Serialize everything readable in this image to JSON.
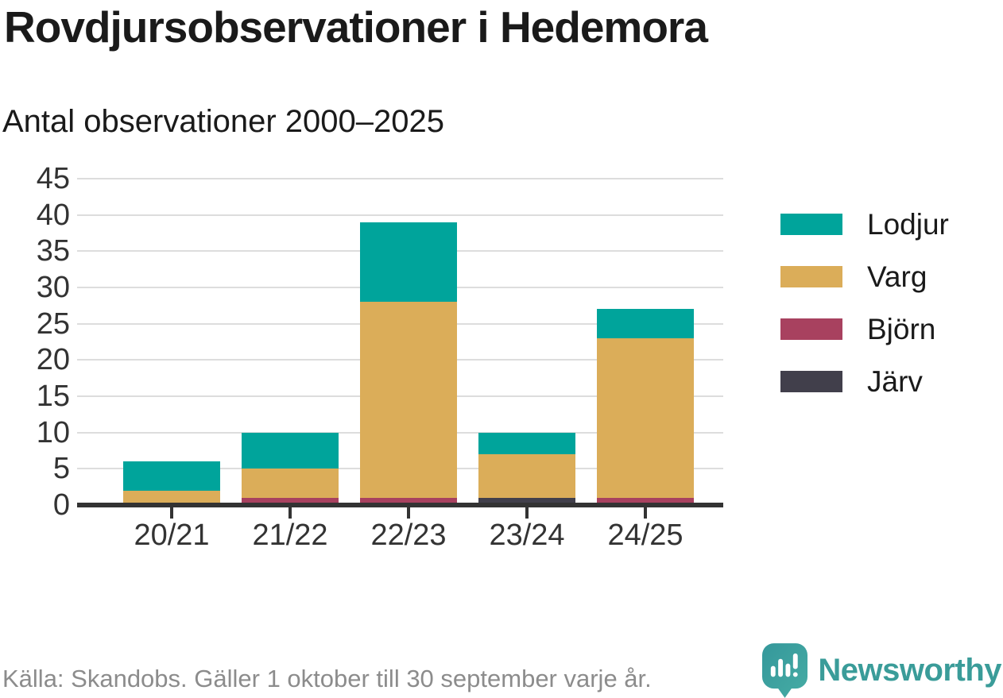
{
  "header": {
    "title": "Rovdjursobservationer i Hedemora",
    "subtitle": "Antal observationer 2000–2025"
  },
  "chart_data": {
    "type": "bar",
    "stacked": true,
    "title": "Rovdjursobservationer i Hedemora",
    "subtitle": "Antal observationer 2000–2025",
    "categories": [
      "20/21",
      "21/22",
      "22/23",
      "23/24",
      "24/25"
    ],
    "series": [
      {
        "name": "Lodjur",
        "color": "#00a49b",
        "values": [
          4,
          5,
          11,
          3,
          4
        ]
      },
      {
        "name": "Varg",
        "color": "#dbad59",
        "values": [
          2,
          4,
          27,
          6,
          22
        ]
      },
      {
        "name": "Björn",
        "color": "#a8415f",
        "values": [
          0,
          1,
          1,
          0,
          1
        ]
      },
      {
        "name": "Järv",
        "color": "#413f4b",
        "values": [
          0,
          0,
          0,
          1,
          0
        ]
      }
    ],
    "totals": [
      6,
      10,
      39,
      10,
      27
    ],
    "xlabel": "",
    "ylabel": "",
    "ylim": [
      0,
      45
    ],
    "yticks": [
      0,
      5,
      10,
      15,
      20,
      25,
      30,
      35,
      40,
      45
    ],
    "grid": true,
    "legend_position": "right"
  },
  "footer": {
    "source": "Källa: Skandobs. Gäller 1 oktober till 30 september varje år.",
    "brand": "Newsworthy"
  },
  "colors": {
    "title": "#1a1a1a",
    "tick_label": "#333333",
    "gridline": "#dddddd",
    "axis": "#333333",
    "source_text": "#8c8c8c",
    "brand_teal": "#3a9c99",
    "logo_bubble": "#3ba39e"
  }
}
